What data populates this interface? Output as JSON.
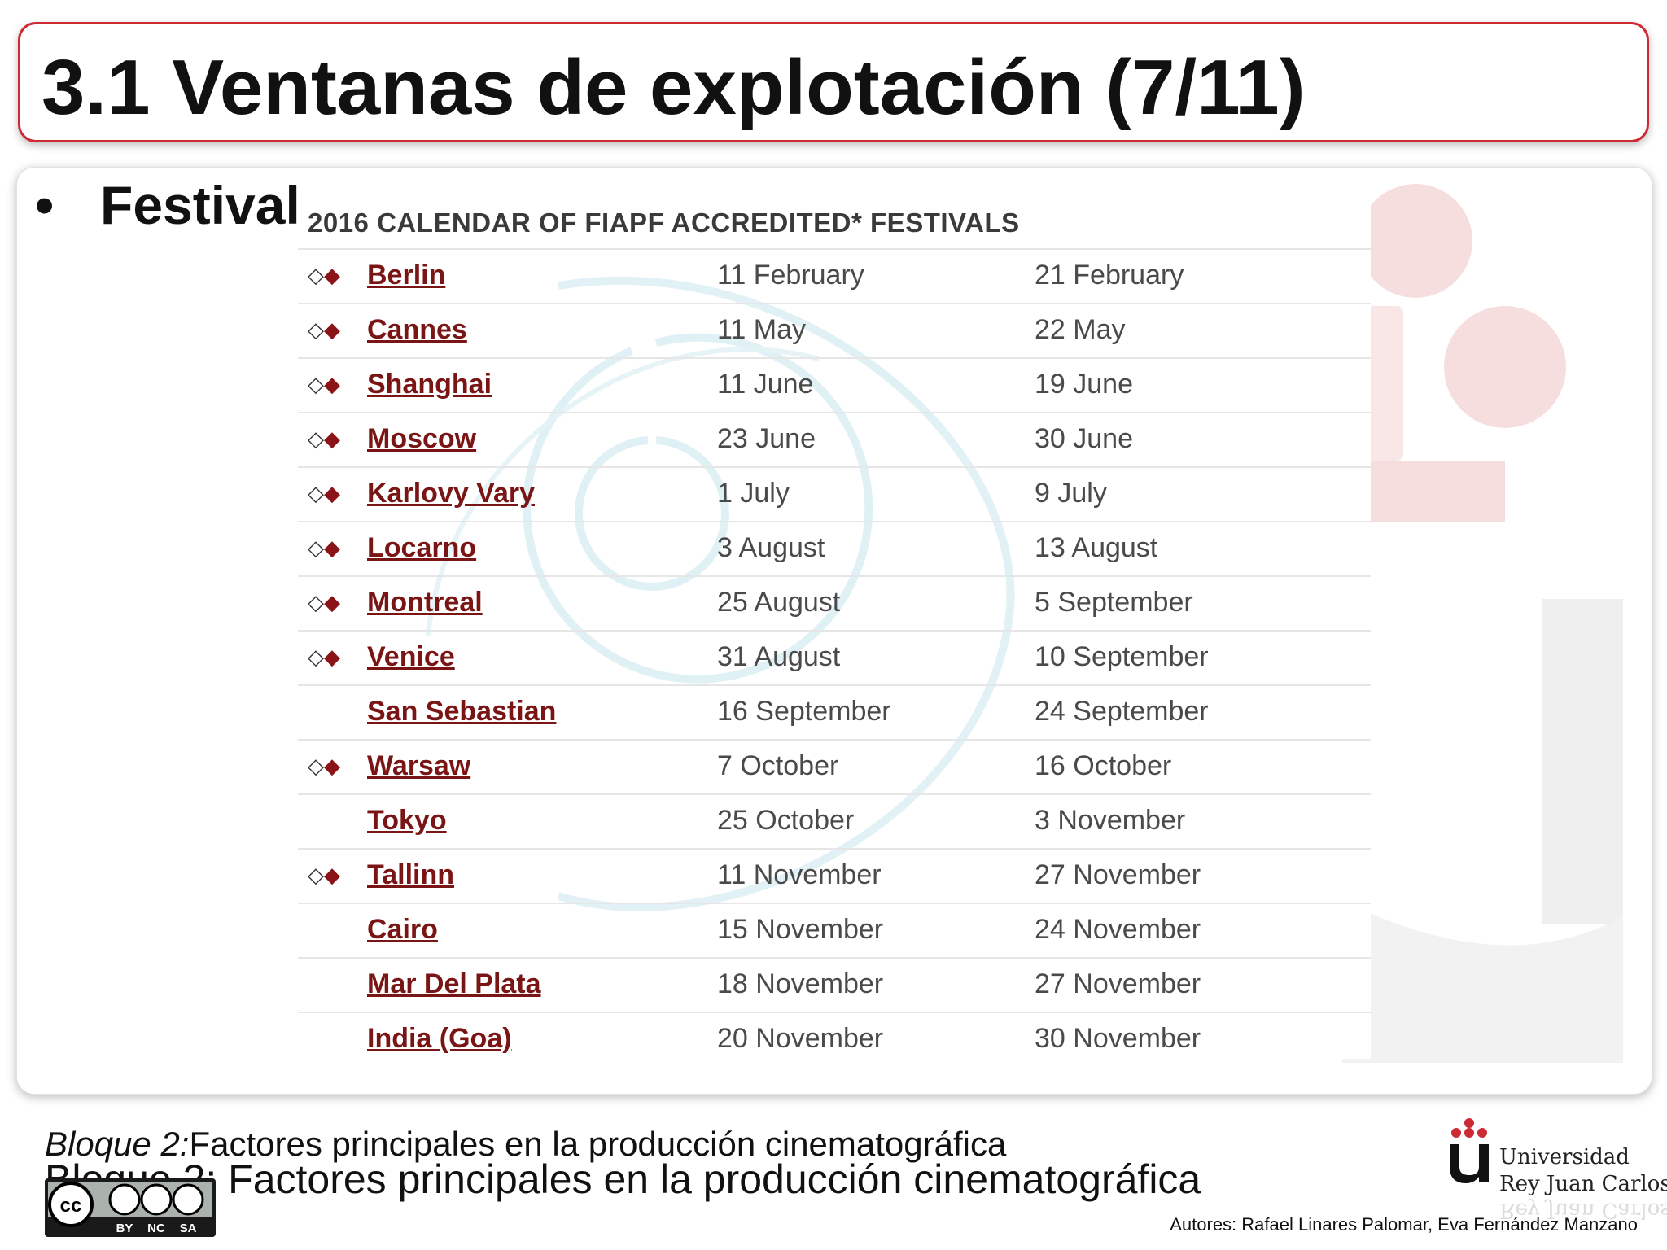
{
  "slide": {
    "title": "3.1 Ventanas de explotación (7/11)",
    "bullet_marker": "•",
    "bullet_text": "Festival"
  },
  "calendar": {
    "title": "2016 CALENDAR OF FIAPF ACCREDITED* FESTIVALS",
    "marker_open": "◇",
    "marker_filled": "◆",
    "rows": [
      {
        "mark": "◇◆",
        "city": "Berlin",
        "start": "11 February",
        "end": "21 February"
      },
      {
        "mark": "◇◆",
        "city": "Cannes",
        "start": "11 May",
        "end": "22 May"
      },
      {
        "mark": "◇◆",
        "city": "Shanghai",
        "start": "11 June",
        "end": "19 June"
      },
      {
        "mark": "◇◆",
        "city": "Moscow",
        "start": "23 June",
        "end": "30 June"
      },
      {
        "mark": "◇◆",
        "city": "Karlovy Vary",
        "start": "1 July",
        "end": "9 July"
      },
      {
        "mark": "◇◆",
        "city": "Locarno",
        "start": "3 August",
        "end": "13 August"
      },
      {
        "mark": "◇◆",
        "city": "Montreal",
        "start": "25 August",
        "end": "5 September"
      },
      {
        "mark": "◇◆",
        "city": "Venice",
        "start": "31 August",
        "end": "10 September"
      },
      {
        "mark": "",
        "city": "San Sebastian",
        "start": "16 September",
        "end": "24 September"
      },
      {
        "mark": "◇◆",
        "city": "Warsaw",
        "start": "7 October",
        "end": "16 October"
      },
      {
        "mark": "",
        "city": "Tokyo",
        "start": "25 October",
        "end": "3 November"
      },
      {
        "mark": "◇◆",
        "city": "Tallinn",
        "start": "11 November",
        "end": "27 November"
      },
      {
        "mark": "",
        "city": "Cairo",
        "start": "15 November",
        "end": "24 November"
      },
      {
        "mark": "",
        "city": "Mar Del Plata",
        "start": "18 November",
        "end": "27 November"
      },
      {
        "mark": "",
        "city": "India (Goa)",
        "start": "20 November",
        "end": "30 November"
      }
    ]
  },
  "footer": {
    "bloque_line1_italic": "Bloque 2:",
    "bloque_line1_rest": "Factores principales en la producción cinematográfica",
    "bloque_line2": "Bloque 2: Factores principales en la producción cinematográfica",
    "license_labels": [
      "BY",
      "NC",
      "SA"
    ],
    "license_cc": "cc",
    "university_line1": "Universidad",
    "university_line2": "Rey Juan Carlos",
    "authors": "Autores: Rafael Linares Palomar, Eva Fernández Manzano"
  },
  "colors": {
    "title_border": "#cc2b33",
    "city_link": "#7a1515",
    "accent_red": "#cc2b33"
  }
}
